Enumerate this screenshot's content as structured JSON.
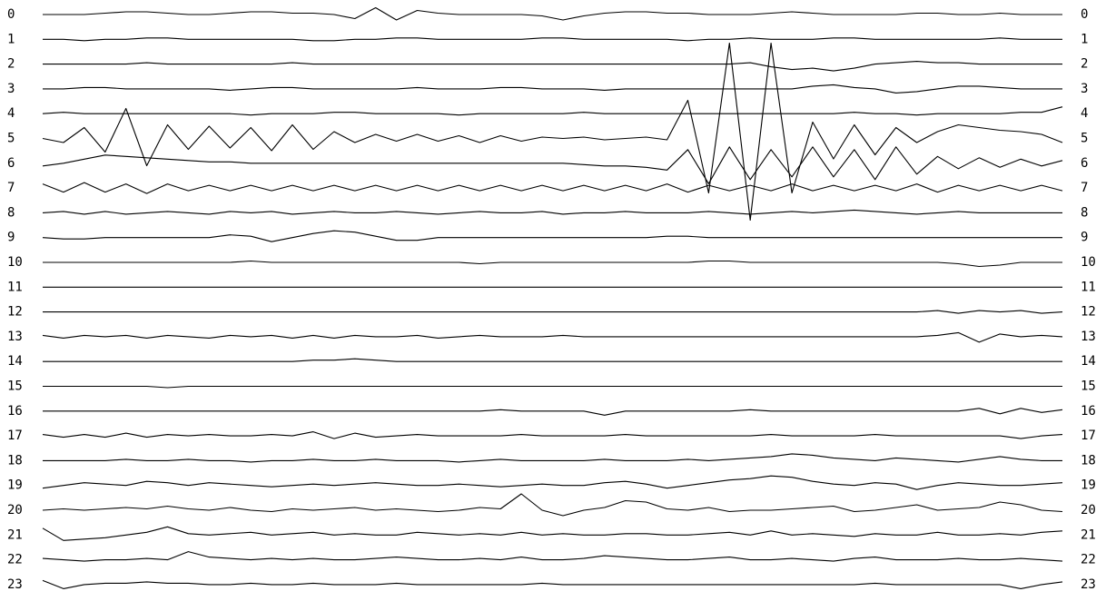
{
  "chart_data": {
    "type": "multitrace",
    "color": "#000000",
    "series": [
      {
        "name": "0",
        "values": [
          0,
          0,
          0,
          1,
          2,
          2,
          1,
          0,
          0,
          1,
          2,
          2,
          1,
          1,
          0,
          -3,
          5,
          -4,
          3,
          1,
          0,
          0,
          0,
          0,
          -1,
          -4,
          -1,
          1,
          2,
          2,
          1,
          1,
          0,
          0,
          0,
          1,
          2,
          1,
          0,
          0,
          0,
          0,
          1,
          1,
          0,
          0,
          1,
          0,
          0,
          0
        ]
      },
      {
        "name": "1",
        "values": [
          0,
          0,
          -1,
          0,
          0,
          1,
          1,
          0,
          0,
          0,
          0,
          0,
          0,
          -1,
          -1,
          0,
          0,
          1,
          1,
          0,
          0,
          0,
          0,
          0,
          1,
          1,
          0,
          0,
          0,
          0,
          0,
          -1,
          0,
          0,
          1,
          0,
          0,
          0,
          1,
          1,
          0,
          0,
          0,
          0,
          0,
          0,
          1,
          0,
          0,
          0
        ]
      },
      {
        "name": "2",
        "values": [
          0,
          0,
          0,
          0,
          0,
          1,
          0,
          0,
          0,
          0,
          0,
          0,
          1,
          0,
          0,
          0,
          0,
          0,
          0,
          0,
          0,
          0,
          0,
          0,
          0,
          0,
          0,
          0,
          0,
          0,
          0,
          0,
          0,
          0,
          1,
          -2,
          -4,
          -3,
          -5,
          -3,
          0,
          1,
          2,
          1,
          1,
          0,
          0,
          0,
          0,
          0
        ]
      },
      {
        "name": "3",
        "values": [
          0,
          0,
          1,
          1,
          0,
          0,
          0,
          0,
          0,
          -1,
          0,
          1,
          1,
          0,
          0,
          0,
          0,
          0,
          1,
          0,
          0,
          0,
          1,
          1,
          0,
          0,
          0,
          -1,
          0,
          0,
          0,
          0,
          0,
          0,
          0,
          0,
          0,
          2,
          3,
          1,
          0,
          -3,
          -2,
          0,
          2,
          2,
          1,
          0,
          0,
          0
        ]
      },
      {
        "name": "4",
        "values": [
          0,
          1,
          0,
          0,
          0,
          0,
          0,
          0,
          0,
          0,
          -1,
          0,
          0,
          0,
          1,
          1,
          0,
          0,
          0,
          0,
          -1,
          0,
          0,
          0,
          0,
          0,
          1,
          0,
          0,
          0,
          0,
          0,
          0,
          0,
          0,
          0,
          0,
          0,
          0,
          1,
          0,
          0,
          -1,
          0,
          0,
          0,
          0,
          1,
          1,
          5
        ]
      },
      {
        "name": "5",
        "values": [
          0,
          -3,
          8,
          -10,
          22,
          -20,
          10,
          -8,
          9,
          -7,
          8,
          -9,
          10,
          -8,
          5,
          -3,
          3,
          -2,
          3,
          -2,
          2,
          -3,
          2,
          -2,
          1,
          0,
          1,
          -1,
          0,
          1,
          -1,
          28,
          -40,
          70,
          -60,
          70,
          -40,
          12,
          -15,
          10,
          -12,
          8,
          -3,
          5,
          10,
          8,
          6,
          5,
          3,
          -3
        ]
      },
      {
        "name": "6",
        "values": [
          -2,
          0,
          3,
          6,
          5,
          4,
          3,
          2,
          1,
          1,
          0,
          0,
          0,
          0,
          0,
          0,
          0,
          0,
          0,
          0,
          0,
          0,
          0,
          0,
          0,
          0,
          -1,
          -2,
          -2,
          -3,
          -5,
          10,
          -15,
          12,
          -12,
          10,
          -10,
          12,
          -10,
          10,
          -12,
          12,
          -8,
          5,
          -4,
          4,
          -3,
          3,
          -2,
          2
        ]
      },
      {
        "name": "7",
        "values": [
          3,
          -3,
          4,
          -3,
          3,
          -4,
          3,
          -2,
          2,
          -2,
          2,
          -2,
          2,
          -2,
          2,
          -2,
          2,
          -2,
          2,
          -2,
          2,
          -2,
          2,
          -2,
          2,
          -2,
          2,
          -2,
          2,
          -2,
          3,
          -3,
          2,
          -2,
          2,
          -2,
          3,
          -2,
          2,
          -2,
          2,
          -2,
          3,
          -3,
          2,
          -2,
          2,
          -2,
          2,
          -2
        ]
      },
      {
        "name": "8",
        "values": [
          0,
          1,
          -1,
          1,
          -1,
          0,
          1,
          0,
          -1,
          1,
          0,
          1,
          -1,
          0,
          1,
          0,
          0,
          1,
          0,
          -1,
          0,
          1,
          0,
          0,
          1,
          -1,
          0,
          0,
          1,
          0,
          0,
          0,
          1,
          0,
          -1,
          0,
          1,
          0,
          1,
          2,
          1,
          0,
          -1,
          0,
          1,
          0,
          0,
          0,
          0,
          0
        ]
      },
      {
        "name": "9",
        "values": [
          0,
          -1,
          -1,
          0,
          0,
          0,
          0,
          0,
          0,
          2,
          1,
          -3,
          0,
          3,
          5,
          4,
          1,
          -2,
          -2,
          0,
          0,
          0,
          0,
          0,
          0,
          0,
          0,
          0,
          0,
          0,
          1,
          1,
          0,
          0,
          0,
          0,
          0,
          0,
          0,
          0,
          0,
          0,
          0,
          0,
          0,
          0,
          0,
          0,
          0,
          0
        ]
      },
      {
        "name": "10",
        "values": [
          0,
          0,
          0,
          0,
          0,
          0,
          0,
          0,
          0,
          0,
          1,
          0,
          0,
          0,
          0,
          0,
          0,
          0,
          0,
          0,
          0,
          -1,
          0,
          0,
          0,
          0,
          0,
          0,
          0,
          0,
          0,
          0,
          1,
          1,
          0,
          0,
          0,
          0,
          0,
          0,
          0,
          0,
          0,
          0,
          -1,
          -3,
          -2,
          0,
          0,
          0
        ]
      },
      {
        "name": "11",
        "values": [
          0,
          0,
          0,
          0,
          0,
          0,
          0,
          0,
          0,
          0,
          0,
          0,
          0,
          0,
          0,
          0,
          0,
          0,
          0,
          0,
          0,
          0,
          0,
          0,
          0,
          0,
          0,
          0,
          0,
          0,
          0,
          0,
          0,
          0,
          0,
          0,
          0,
          0,
          0,
          0,
          0,
          0,
          0,
          0,
          0,
          0,
          0,
          0,
          0,
          0
        ]
      },
      {
        "name": "12",
        "values": [
          0,
          0,
          0,
          0,
          0,
          0,
          0,
          0,
          0,
          0,
          0,
          0,
          0,
          0,
          0,
          0,
          0,
          0,
          0,
          0,
          0,
          0,
          0,
          0,
          0,
          0,
          0,
          0,
          0,
          0,
          0,
          0,
          0,
          0,
          0,
          0,
          0,
          0,
          0,
          0,
          0,
          0,
          0,
          1,
          -1,
          1,
          0,
          1,
          -1,
          0
        ]
      },
      {
        "name": "13",
        "values": [
          1,
          -1,
          1,
          0,
          1,
          -1,
          1,
          0,
          -1,
          1,
          0,
          1,
          -1,
          1,
          -1,
          1,
          0,
          0,
          1,
          -1,
          0,
          1,
          0,
          0,
          0,
          1,
          0,
          0,
          0,
          0,
          0,
          0,
          0,
          0,
          0,
          0,
          0,
          0,
          0,
          0,
          0,
          0,
          0,
          1,
          3,
          -4,
          2,
          0,
          1,
          0
        ]
      },
      {
        "name": "14",
        "values": [
          0,
          0,
          0,
          0,
          0,
          0,
          0,
          0,
          0,
          0,
          0,
          0,
          0,
          1,
          1,
          2,
          1,
          0,
          0,
          0,
          0,
          0,
          0,
          0,
          0,
          0,
          0,
          0,
          0,
          0,
          0,
          0,
          0,
          0,
          0,
          0,
          0,
          0,
          0,
          0,
          0,
          0,
          0,
          0,
          0,
          0,
          0,
          0,
          0,
          0
        ]
      },
      {
        "name": "15",
        "values": [
          0,
          0,
          0,
          0,
          0,
          0,
          -1,
          0,
          0,
          0,
          0,
          0,
          0,
          0,
          0,
          0,
          0,
          0,
          0,
          0,
          0,
          0,
          0,
          0,
          0,
          0,
          0,
          0,
          0,
          0,
          0,
          0,
          0,
          0,
          0,
          0,
          0,
          0,
          0,
          0,
          0,
          0,
          0,
          0,
          0,
          0,
          0,
          0,
          0,
          0
        ]
      },
      {
        "name": "16",
        "values": [
          0,
          0,
          0,
          0,
          0,
          0,
          0,
          0,
          0,
          0,
          0,
          0,
          0,
          0,
          0,
          0,
          0,
          0,
          0,
          0,
          0,
          0,
          1,
          0,
          0,
          0,
          0,
          -3,
          0,
          0,
          0,
          0,
          0,
          0,
          1,
          0,
          0,
          0,
          0,
          0,
          0,
          0,
          0,
          0,
          0,
          2,
          -2,
          2,
          -1,
          1
        ]
      },
      {
        "name": "17",
        "values": [
          1,
          -1,
          1,
          -1,
          2,
          -1,
          1,
          0,
          1,
          0,
          0,
          1,
          0,
          3,
          -2,
          2,
          -1,
          0,
          1,
          0,
          0,
          0,
          0,
          1,
          0,
          0,
          0,
          0,
          1,
          0,
          0,
          0,
          0,
          0,
          0,
          1,
          0,
          0,
          0,
          0,
          1,
          0,
          0,
          0,
          0,
          0,
          0,
          -2,
          0,
          1
        ]
      },
      {
        "name": "18",
        "values": [
          0,
          0,
          0,
          0,
          1,
          0,
          0,
          1,
          0,
          0,
          -1,
          0,
          0,
          1,
          0,
          0,
          1,
          0,
          0,
          0,
          -1,
          0,
          1,
          0,
          0,
          0,
          0,
          1,
          0,
          0,
          0,
          1,
          0,
          1,
          2,
          3,
          5,
          4,
          2,
          1,
          0,
          2,
          1,
          0,
          -1,
          1,
          3,
          1,
          0,
          0
        ]
      },
      {
        "name": "19",
        "values": [
          -2,
          0,
          2,
          1,
          0,
          3,
          2,
          0,
          2,
          1,
          0,
          -1,
          0,
          1,
          0,
          1,
          2,
          1,
          0,
          0,
          1,
          0,
          -1,
          0,
          1,
          0,
          0,
          2,
          3,
          1,
          -2,
          0,
          2,
          4,
          5,
          7,
          6,
          3,
          1,
          0,
          2,
          1,
          -3,
          0,
          2,
          1,
          0,
          0,
          1,
          2
        ]
      },
      {
        "name": "20",
        "values": [
          0,
          1,
          0,
          1,
          2,
          1,
          3,
          1,
          0,
          2,
          0,
          -1,
          1,
          0,
          1,
          2,
          0,
          1,
          0,
          -1,
          0,
          2,
          1,
          12,
          0,
          -4,
          0,
          2,
          7,
          6,
          1,
          0,
          2,
          -1,
          0,
          0,
          1,
          2,
          3,
          -1,
          0,
          2,
          4,
          0,
          1,
          2,
          6,
          4,
          0,
          -1
        ]
      },
      {
        "name": "21",
        "values": [
          5,
          -4,
          -3,
          -2,
          0,
          2,
          6,
          1,
          0,
          1,
          2,
          0,
          1,
          2,
          0,
          1,
          0,
          0,
          2,
          1,
          0,
          1,
          0,
          2,
          0,
          1,
          0,
          0,
          1,
          1,
          0,
          0,
          1,
          2,
          0,
          3,
          0,
          1,
          0,
          -1,
          1,
          0,
          0,
          2,
          0,
          0,
          1,
          0,
          2,
          3
        ]
      },
      {
        "name": "22",
        "values": [
          1,
          0,
          -1,
          0,
          0,
          1,
          0,
          6,
          2,
          1,
          0,
          1,
          0,
          1,
          0,
          0,
          1,
          2,
          1,
          0,
          0,
          1,
          0,
          2,
          0,
          0,
          1,
          3,
          2,
          1,
          0,
          0,
          1,
          2,
          0,
          0,
          1,
          0,
          -1,
          1,
          2,
          0,
          0,
          0,
          1,
          0,
          0,
          1,
          0,
          -1
        ]
      },
      {
        "name": "23",
        "values": [
          3,
          -3,
          0,
          1,
          1,
          2,
          1,
          1,
          0,
          0,
          1,
          0,
          0,
          1,
          0,
          0,
          0,
          1,
          0,
          0,
          0,
          0,
          0,
          0,
          1,
          0,
          0,
          0,
          0,
          0,
          0,
          0,
          0,
          0,
          0,
          0,
          0,
          0,
          0,
          0,
          1,
          0,
          0,
          0,
          0,
          0,
          0,
          -3,
          0,
          2
        ]
      }
    ]
  }
}
